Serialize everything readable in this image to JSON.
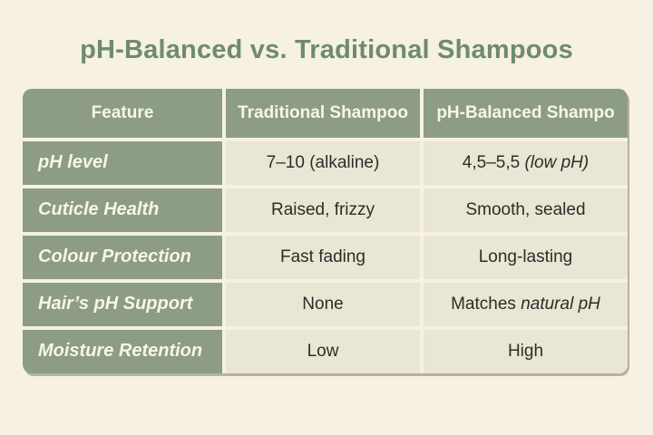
{
  "title": "pH-Balanced vs. Traditional Shampoos",
  "colors": {
    "page_background": "#f6f1e2",
    "table_green": "#8c9d83",
    "data_cell_background": "#eae6d6",
    "title_green": "#6e8b70",
    "light_text": "#f8f5e9",
    "dark_text": "#2d2c27",
    "table_edge_shadow": "#7d8064"
  },
  "chart_data": {
    "type": "table",
    "title": "pH-Balanced vs. Traditional Shampoos",
    "columns": [
      "Feature",
      "Traditional Shampoo",
      "pH-Balanced Shampo"
    ],
    "rows": [
      [
        "pH level",
        "7–10 (alkaline)",
        "4,5–5,5 (low pH)"
      ],
      [
        "Cuticle Health",
        "Raised, frizzy",
        "Smooth, sealed"
      ],
      [
        "Colour Protection",
        "Fast fading",
        "Long-lasting"
      ],
      [
        "Hair’s pH Support",
        "None",
        "Matches natural pH"
      ],
      [
        "Moisture Retention",
        "Low",
        "High"
      ]
    ],
    "layout_hints": {
      "header_row": "green background, white bold text, centered",
      "feature_column": "green background, white bold italic text, left-aligned",
      "data_cells": "cream background, dark text, centered"
    }
  },
  "rich": {
    "ph_level_balanced": {
      "pre": "4,5–5,5 ",
      "italic": "(low pH)",
      "post": ""
    },
    "ph_support_balanced": {
      "pre": "Matches ",
      "italic": "natural pH",
      "post": ""
    }
  }
}
